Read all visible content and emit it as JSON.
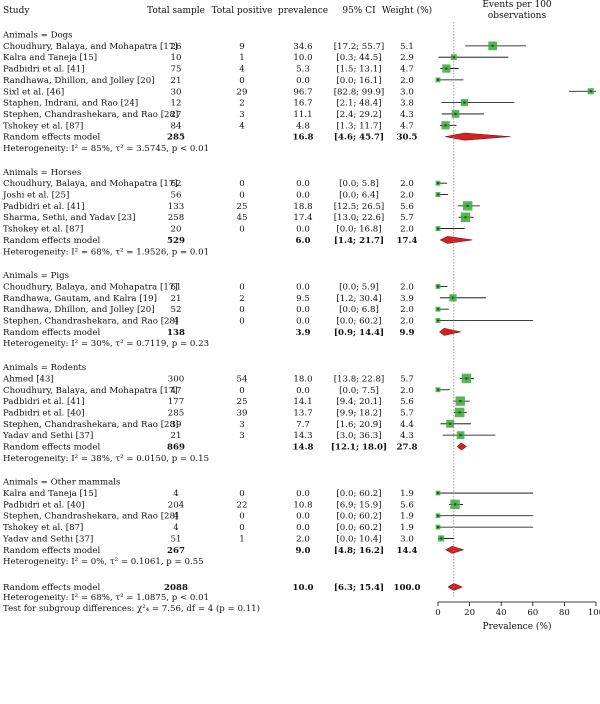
{
  "header": {
    "study": "Study",
    "total_sample": "Total sample",
    "total_positive": "Total positive",
    "prevalence": "prevalence",
    "ci": "95% CI",
    "weight": "Weight (%)",
    "events_line1": "Events per 100",
    "events_line2": "observations"
  },
  "chart_data": {
    "type": "forest",
    "xlabel": "Prevalence (%)",
    "xlim": [
      0,
      100
    ],
    "xticks": [
      0,
      20,
      40,
      60,
      80,
      100
    ],
    "reference_line": 10.0,
    "colors": {
      "study_point": "#3aa83a",
      "diamond": "#d42020",
      "reference_line": "#888888"
    },
    "groups": [
      {
        "name": "Animals = Dogs",
        "studies": [
          {
            "study": "Choudhury, Balaya, and Mohapatra [17]",
            "total": "26",
            "positive": "9",
            "prevalence": "34.6",
            "ci": "[17.2; 55.7]",
            "weight": "5.1",
            "est": 34.6,
            "lo": 17.2,
            "hi": 55.7,
            "w": 5.1
          },
          {
            "study": "Kalra and Taneja [15]",
            "total": "10",
            "positive": "1",
            "prevalence": "10.0",
            "ci": "[0.3; 44.5]",
            "weight": "2.9",
            "est": 10.0,
            "lo": 0.3,
            "hi": 44.5,
            "w": 2.9
          },
          {
            "study": "Padbidri et al. [41]",
            "total": "75",
            "positive": "4",
            "prevalence": "5.3",
            "ci": "[1.5; 13.1]",
            "weight": "4.7",
            "est": 5.3,
            "lo": 1.5,
            "hi": 13.1,
            "w": 4.7
          },
          {
            "study": "Randhawa, Dhillon, and Jolley [20]",
            "total": "21",
            "positive": "0",
            "prevalence": "0.0",
            "ci": "[0.0; 16.1]",
            "weight": "2.0",
            "est": 0.0,
            "lo": 0.0,
            "hi": 16.1,
            "w": 2.0
          },
          {
            "study": "Sixl et al. [46]",
            "total": "30",
            "positive": "29",
            "prevalence": "96.7",
            "ci": "[82.8; 99.9]",
            "weight": "3.0",
            "est": 96.7,
            "lo": 82.8,
            "hi": 99.9,
            "w": 3.0
          },
          {
            "study": "Staphen, Indrani, and Rao [24]",
            "total": "12",
            "positive": "2",
            "prevalence": "16.7",
            "ci": "[2.1; 48.4]",
            "weight": "3.8",
            "est": 16.7,
            "lo": 2.1,
            "hi": 48.4,
            "w": 3.8
          },
          {
            "study": "Stephen, Chandrashekara, and Rao [28]",
            "total": "27",
            "positive": "3",
            "prevalence": "11.1",
            "ci": "[2.4; 29.2]",
            "weight": "4.3",
            "est": 11.1,
            "lo": 2.4,
            "hi": 29.2,
            "w": 4.3
          },
          {
            "study": "Tshokey et al. [87]",
            "total": "84",
            "positive": "4",
            "prevalence": "4.8",
            "ci": "[1.3; 11.7]",
            "weight": "4.7",
            "est": 4.8,
            "lo": 1.3,
            "hi": 11.7,
            "w": 4.7
          }
        ],
        "model": {
          "label": "Random effects model",
          "total": "285",
          "prevalence": "16.8",
          "ci": "[4.6; 45.7]",
          "weight": "30.5",
          "est": 16.8,
          "lo": 4.6,
          "hi": 45.7
        },
        "heterogeneity": "Heterogeneity: I² = 85%, τ² = 3.5745, p < 0.01"
      },
      {
        "name": "Animals = Horses",
        "studies": [
          {
            "study": "Choudhury, Balaya, and Mohapatra [17]",
            "total": "62",
            "positive": "0",
            "prevalence": "0.0",
            "ci": "[0.0; 5.8]",
            "weight": "2.0",
            "est": 0.0,
            "lo": 0.0,
            "hi": 5.8,
            "w": 2.0
          },
          {
            "study": "Joshi et al. [25]",
            "total": "56",
            "positive": "0",
            "prevalence": "0.0",
            "ci": "[0.0; 6.4]",
            "weight": "2.0",
            "est": 0.0,
            "lo": 0.0,
            "hi": 6.4,
            "w": 2.0
          },
          {
            "study": "Padbidri et al. [41]",
            "total": "133",
            "positive": "25",
            "prevalence": "18.8",
            "ci": "[12.5; 26.5]",
            "weight": "5.6",
            "est": 18.8,
            "lo": 12.5,
            "hi": 26.5,
            "w": 5.6
          },
          {
            "study": "Sharma, Sethi, and Yadav [23]",
            "total": "258",
            "positive": "45",
            "prevalence": "17.4",
            "ci": "[13.0; 22.6]",
            "weight": "5.7",
            "est": 17.4,
            "lo": 13.0,
            "hi": 22.6,
            "w": 5.7
          },
          {
            "study": "Tshokey et al. [87]",
            "total": "20",
            "positive": "0",
            "prevalence": "0.0",
            "ci": "[0.0; 16.8]",
            "weight": "2.0",
            "est": 0.0,
            "lo": 0.0,
            "hi": 16.8,
            "w": 2.0
          }
        ],
        "model": {
          "label": "Random effects model",
          "total": "529",
          "prevalence": "6.0",
          "ci": "[1.4; 21.7]",
          "weight": "17.4",
          "est": 6.0,
          "lo": 1.4,
          "hi": 21.7
        },
        "heterogeneity": "Heterogeneity: I² = 68%, τ² = 1.9526, p = 0.01"
      },
      {
        "name": "Animals = Pigs",
        "studies": [
          {
            "study": "Choudhury, Balaya, and Mohapatra [17]",
            "total": "61",
            "positive": "0",
            "prevalence": "0.0",
            "ci": "[0.0; 5.9]",
            "weight": "2.0",
            "est": 0.0,
            "lo": 0.0,
            "hi": 5.9,
            "w": 2.0
          },
          {
            "study": "Randhawa, Gautam, and Kalra [19]",
            "total": "21",
            "positive": "2",
            "prevalence": "9.5",
            "ci": "[1.2; 30.4]",
            "weight": "3.9",
            "est": 9.5,
            "lo": 1.2,
            "hi": 30.4,
            "w": 3.9
          },
          {
            "study": "Randhawa, Dhillon, and Jolley [20]",
            "total": "52",
            "positive": "0",
            "prevalence": "0.0",
            "ci": "[0.0; 6.8]",
            "weight": "2.0",
            "est": 0.0,
            "lo": 0.0,
            "hi": 6.8,
            "w": 2.0
          },
          {
            "study": "Stephen, Chandrashekara, and Rao [28]",
            "total": "4",
            "positive": "0",
            "prevalence": "0.0",
            "ci": "[0.0; 60.2]",
            "weight": "2.0",
            "est": 0.0,
            "lo": 0.0,
            "hi": 60.2,
            "w": 2.0
          }
        ],
        "model": {
          "label": "Random effects model",
          "total": "138",
          "prevalence": "3.9",
          "ci": "[0.9; 14.4]",
          "weight": "9.9",
          "est": 3.9,
          "lo": 0.9,
          "hi": 14.4
        },
        "heterogeneity": "Heterogeneity: I² = 30%, τ² = 0.7119, p = 0.23"
      },
      {
        "name": "Animals = Rodents",
        "studies": [
          {
            "study": "Ahmed [43]",
            "total": "300",
            "positive": "54",
            "prevalence": "18.0",
            "ci": "[13.8; 22.8]",
            "weight": "5.7",
            "est": 18.0,
            "lo": 13.8,
            "hi": 22.8,
            "w": 5.7
          },
          {
            "study": "Choudhury, Balaya, and Mohapatra [17]",
            "total": "47",
            "positive": "0",
            "prevalence": "0.0",
            "ci": "[0.0; 7.5]",
            "weight": "2.0",
            "est": 0.0,
            "lo": 0.0,
            "hi": 7.5,
            "w": 2.0
          },
          {
            "study": "Padbidri et al. [41]",
            "total": "177",
            "positive": "25",
            "prevalence": "14.1",
            "ci": "[9.4; 20.1]",
            "weight": "5.6",
            "est": 14.1,
            "lo": 9.4,
            "hi": 20.1,
            "w": 5.6
          },
          {
            "study": "Padbidri et al. [40]",
            "total": "285",
            "positive": "39",
            "prevalence": "13.7",
            "ci": "[9.9; 18.2]",
            "weight": "5.7",
            "est": 13.7,
            "lo": 9.9,
            "hi": 18.2,
            "w": 5.7
          },
          {
            "study": "Stephen, Chandrashekara, and Rao [28]",
            "total": "39",
            "positive": "3",
            "prevalence": "7.7",
            "ci": "[1.6; 20.9]",
            "weight": "4.4",
            "est": 7.7,
            "lo": 1.6,
            "hi": 20.9,
            "w": 4.4
          },
          {
            "study": "Yadav and Sethi [37]",
            "total": "21",
            "positive": "3",
            "prevalence": "14.3",
            "ci": "[3.0; 36.3]",
            "weight": "4.3",
            "est": 14.3,
            "lo": 3.0,
            "hi": 36.3,
            "w": 4.3
          }
        ],
        "model": {
          "label": "Random effects model",
          "total": "869",
          "prevalence": "14.8",
          "ci": "[12.1; 18.0]",
          "weight": "27.8",
          "est": 14.8,
          "lo": 12.1,
          "hi": 18.0
        },
        "heterogeneity": "Heterogeneity: I² = 38%, τ² = 0.0150, p = 0.15"
      },
      {
        "name": "Animals = Other mammals",
        "studies": [
          {
            "study": "Kalra and Taneja [15]",
            "total": "4",
            "positive": "0",
            "prevalence": "0.0",
            "ci": "[0.0; 60.2]",
            "weight": "1.9",
            "est": 0.0,
            "lo": 0.0,
            "hi": 60.2,
            "w": 1.9
          },
          {
            "study": "Padbidri et al. [40]",
            "total": "204",
            "positive": "22",
            "prevalence": "10.8",
            "ci": "[6.9; 15.9]",
            "weight": "5.6",
            "est": 10.8,
            "lo": 6.9,
            "hi": 15.9,
            "w": 5.6
          },
          {
            "study": "Stephen, Chandrashekara, and Rao [28]",
            "total": "4",
            "positive": "0",
            "prevalence": "0.0",
            "ci": "[0.0; 60.2]",
            "weight": "1.9",
            "est": 0.0,
            "lo": 0.0,
            "hi": 60.2,
            "w": 1.9
          },
          {
            "study": "Tshokey et al. [87]",
            "total": "4",
            "positive": "0",
            "prevalence": "0.0",
            "ci": "[0.0; 60.2]",
            "weight": "1.9",
            "est": 0.0,
            "lo": 0.0,
            "hi": 60.2,
            "w": 1.9
          },
          {
            "study": "Yadav and Sethi [37]",
            "total": "51",
            "positive": "1",
            "prevalence": "2.0",
            "ci": "[0.0; 10.4]",
            "weight": "3.0",
            "est": 2.0,
            "lo": 0.0,
            "hi": 10.4,
            "w": 3.0
          }
        ],
        "model": {
          "label": "Random effects model",
          "total": "267",
          "prevalence": "9.0",
          "ci": "[4.8; 16.2]",
          "weight": "14.4",
          "est": 9.0,
          "lo": 4.8,
          "hi": 16.2
        },
        "heterogeneity": "Heterogeneity: I² = 0%, τ² = 0.1061, p = 0.55"
      }
    ],
    "overall": {
      "label": "Random effects model",
      "total": "2088",
      "prevalence": "10.0",
      "ci": "[6.3; 15.4]",
      "weight": "100.0",
      "est": 10.0,
      "lo": 6.3,
      "hi": 15.4
    },
    "overall_heterogeneity": "Heterogeneity: I² = 68%, τ² = 1.0875, p < 0.01",
    "subgroup_test": "Test for subgroup differences: χ²₄ = 7.56, df = 4 (p = 0.11)"
  }
}
